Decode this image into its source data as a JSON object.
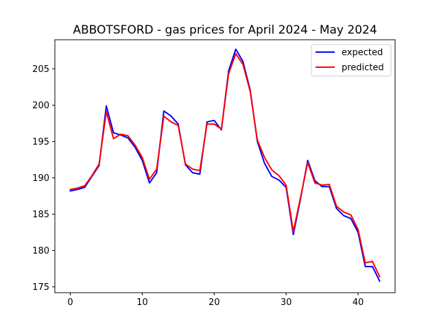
{
  "chart_data": {
    "type": "line",
    "title": "ABBOTSFORD - gas prices for April 2024 - May 2024",
    "xlabel": "",
    "ylabel": "",
    "xlim": [
      -2.15,
      45.15
    ],
    "ylim": [
      174.2,
      209.0
    ],
    "xticks": [
      0,
      10,
      20,
      30,
      40
    ],
    "yticks": [
      175,
      180,
      185,
      190,
      195,
      200,
      205
    ],
    "grid": false,
    "legend_position": "top-right",
    "x": [
      0,
      1,
      2,
      3,
      4,
      5,
      6,
      7,
      8,
      9,
      10,
      11,
      12,
      13,
      14,
      15,
      16,
      17,
      18,
      19,
      20,
      21,
      22,
      23,
      24,
      25,
      26,
      27,
      28,
      29,
      30,
      31,
      32,
      33,
      34,
      35,
      36,
      37,
      38,
      39,
      40,
      41,
      42,
      43
    ],
    "series": [
      {
        "name": "expected",
        "color": "#0000ff",
        "values": [
          188.2,
          188.4,
          188.7,
          190.2,
          191.7,
          199.9,
          196.2,
          195.9,
          195.5,
          194.2,
          192.4,
          189.3,
          190.7,
          199.2,
          198.5,
          197.4,
          191.8,
          190.7,
          190.5,
          197.7,
          197.9,
          196.6,
          204.7,
          207.7,
          206.0,
          202.1,
          195.0,
          192.0,
          190.2,
          189.7,
          188.7,
          182.2,
          187.1,
          192.4,
          189.6,
          188.8,
          188.8,
          185.8,
          184.8,
          184.4,
          182.5,
          177.8,
          177.8,
          175.8
        ]
      },
      {
        "name": "predicted",
        "color": "#ff0000",
        "values": [
          188.4,
          188.6,
          188.9,
          190.3,
          191.9,
          199.1,
          195.4,
          196.0,
          195.8,
          194.5,
          192.8,
          189.8,
          191.2,
          198.5,
          197.7,
          197.2,
          191.9,
          191.2,
          191.0,
          197.4,
          197.4,
          196.7,
          204.3,
          207.1,
          205.6,
          201.9,
          195.2,
          192.8,
          191.1,
          190.3,
          189.0,
          182.6,
          187.3,
          192.1,
          189.3,
          189.0,
          189.1,
          186.1,
          185.3,
          184.9,
          182.9,
          178.3,
          178.5,
          176.4
        ]
      }
    ]
  }
}
